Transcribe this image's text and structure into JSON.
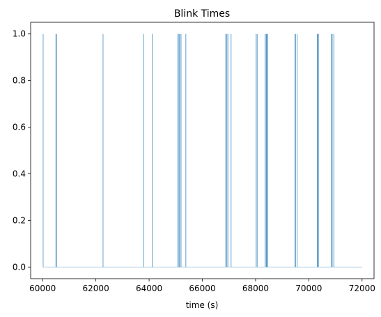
{
  "chart_data": {
    "type": "line",
    "title": "Blink Times",
    "xlabel": "time (s)",
    "ylabel": "",
    "xlim": [
      59550,
      72450
    ],
    "ylim": [
      -0.05,
      1.05
    ],
    "xticks": [
      60000,
      62000,
      64000,
      66000,
      68000,
      70000,
      72000
    ],
    "xtick_labels": [
      "60000",
      "62000",
      "64000",
      "66000",
      "68000",
      "70000",
      "72000"
    ],
    "yticks": [
      0.0,
      0.2,
      0.4,
      0.6,
      0.8,
      1.0
    ],
    "ytick_labels": [
      "0.0",
      "0.2",
      "0.4",
      "0.6",
      "0.8",
      "1.0"
    ],
    "grid": false,
    "series_color": "#1f77b4",
    "series": [
      {
        "baseline": 0,
        "x_range": [
          60000,
          72000
        ],
        "blink_times": [
          60020,
          60500,
          60520,
          62270,
          63800,
          64120,
          65080,
          65120,
          65150,
          65200,
          65380,
          66880,
          66920,
          66960,
          67080,
          68020,
          68060,
          68360,
          68400,
          68420,
          68460,
          69480,
          69500,
          69560,
          70320,
          70340,
          70360,
          70840,
          70880,
          70940
        ],
        "blink_value": 1
      }
    ]
  }
}
